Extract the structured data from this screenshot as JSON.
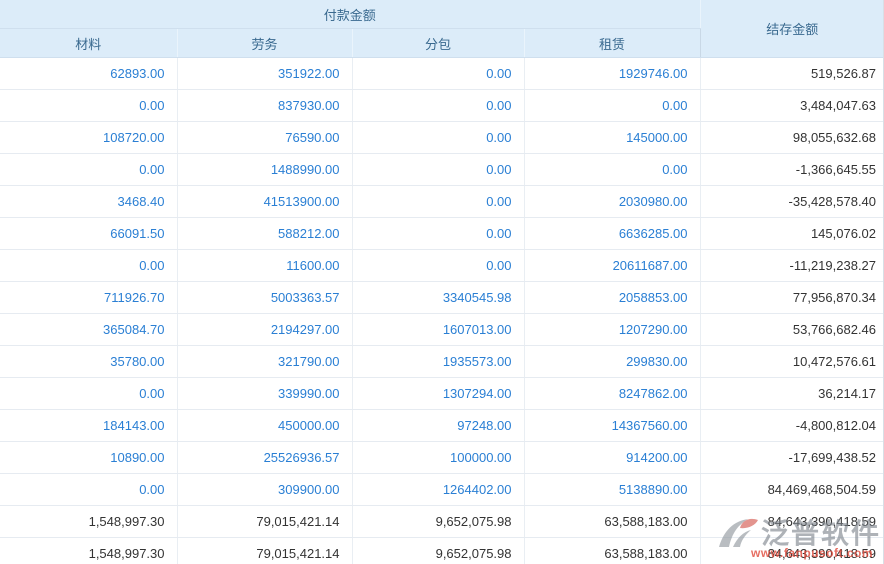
{
  "table": {
    "group_header": "付款金额",
    "balance_header": "结存金额",
    "columns": [
      "材料",
      "劳务",
      "分包",
      "租赁"
    ],
    "rows": [
      [
        "62893.00",
        "351922.00",
        "0.00",
        "1929746.00",
        "519,526.87"
      ],
      [
        "0.00",
        "837930.00",
        "0.00",
        "0.00",
        "3,484,047.63"
      ],
      [
        "108720.00",
        "76590.00",
        "0.00",
        "145000.00",
        "98,055,632.68"
      ],
      [
        "0.00",
        "1488990.00",
        "0.00",
        "0.00",
        "-1,366,645.55"
      ],
      [
        "3468.40",
        "41513900.00",
        "0.00",
        "2030980.00",
        "-35,428,578.40"
      ],
      [
        "66091.50",
        "588212.00",
        "0.00",
        "6636285.00",
        "145,076.02"
      ],
      [
        "0.00",
        "11600.00",
        "0.00",
        "20611687.00",
        "-11,219,238.27"
      ],
      [
        "711926.70",
        "5003363.57",
        "3340545.98",
        "2058853.00",
        "77,956,870.34"
      ],
      [
        "365084.70",
        "2194297.00",
        "1607013.00",
        "1207290.00",
        "53,766,682.46"
      ],
      [
        "35780.00",
        "321790.00",
        "1935573.00",
        "299830.00",
        "10,472,576.61"
      ],
      [
        "0.00",
        "339990.00",
        "1307294.00",
        "8247862.00",
        "36,214.17"
      ],
      [
        "184143.00",
        "450000.00",
        "97248.00",
        "14367560.00",
        "-4,800,812.04"
      ],
      [
        "10890.00",
        "25526936.57",
        "100000.00",
        "914200.00",
        "-17,699,438.52"
      ],
      [
        "0.00",
        "309900.00",
        "1264402.00",
        "5138890.00",
        "84,469,468,504.59"
      ]
    ],
    "total_rows": [
      [
        "1,548,997.30",
        "79,015,421.14",
        "9,652,075.98",
        "63,588,183.00",
        "84,643,390,418.59"
      ],
      [
        "1,548,997.30",
        "79,015,421.14",
        "9,652,075.98",
        "63,588,183.00",
        "84,643,390,418.59"
      ]
    ]
  },
  "watermark": {
    "brand": "泛普软件",
    "url": "www.fanpusoft.com"
  },
  "colors": {
    "link_blue": "#2a7fd4",
    "header_bg": "#dcecf9",
    "header_text": "#39698f",
    "value_dark": "#333333",
    "watermark_red": "#e04b3c"
  }
}
